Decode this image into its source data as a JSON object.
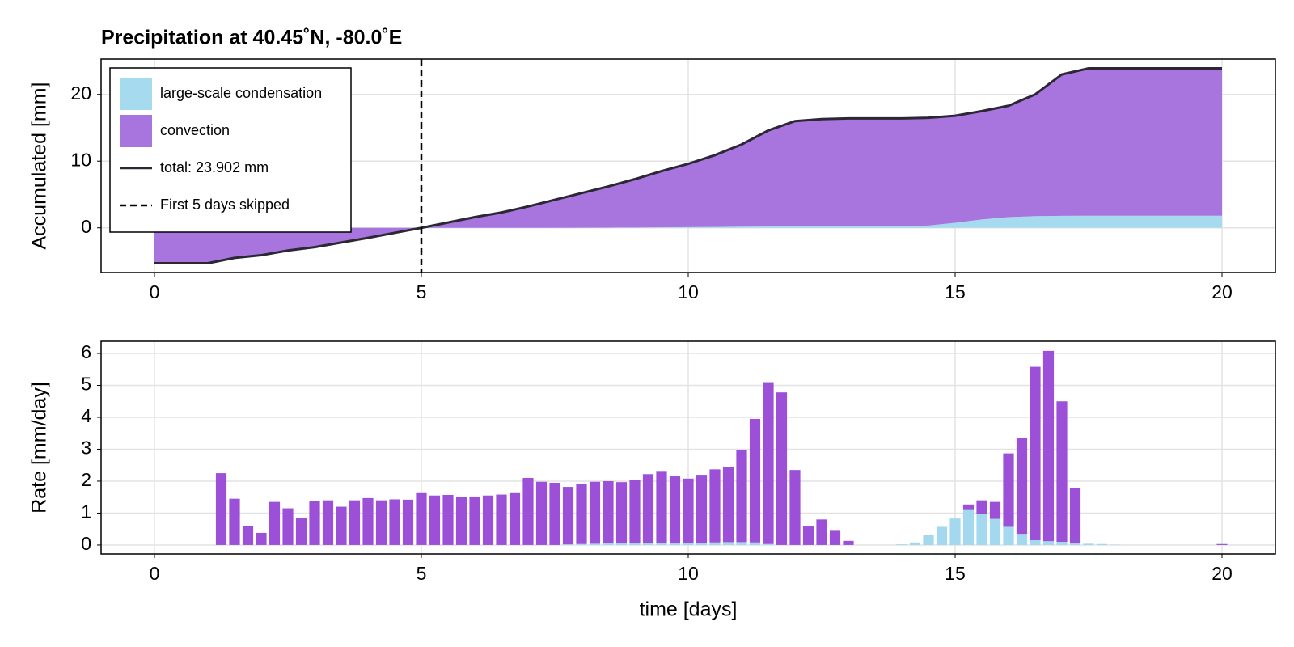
{
  "chart_data": [
    {
      "type": "area",
      "title": "Precipitation at 40.45˚N, -80.0˚E",
      "ylabel": "Accumulated [mm]",
      "x": [
        0,
        0.5,
        1,
        1.5,
        2,
        2.5,
        3,
        3.5,
        4,
        4.5,
        5,
        5.5,
        6,
        6.5,
        7,
        7.5,
        8,
        8.5,
        9,
        9.5,
        10,
        10.5,
        11,
        11.5,
        12,
        12.5,
        13,
        13.5,
        14,
        14.5,
        15,
        15.5,
        16,
        16.5,
        17,
        17.5,
        18,
        18.5,
        19,
        19.5,
        20
      ],
      "series": [
        {
          "name": "large-scale condensation",
          "color": "#a6daef",
          "values": [
            0,
            0,
            0,
            0,
            0,
            0,
            0,
            0,
            0,
            0,
            0,
            0,
            0,
            0,
            0,
            0,
            0.01,
            0.03,
            0.05,
            0.08,
            0.11,
            0.14,
            0.18,
            0.21,
            0.22,
            0.22,
            0.22,
            0.22,
            0.22,
            0.35,
            0.75,
            1.25,
            1.6,
            1.75,
            1.8,
            1.82,
            1.82,
            1.82,
            1.82,
            1.82,
            1.82
          ]
        },
        {
          "name": "convection",
          "color": "#a874dd",
          "values": [
            -5.3,
            -5.3,
            -5.3,
            -4.5,
            -4.1,
            -3.4,
            -2.9,
            -2.2,
            -1.5,
            -0.75,
            0,
            0.8,
            1.6,
            2.3,
            3.2,
            4.2,
            5.19,
            6.17,
            7.25,
            8.42,
            9.49,
            10.76,
            12.32,
            14.39,
            15.78,
            16.08,
            16.18,
            16.18,
            16.18,
            16.15,
            16.05,
            16.25,
            16.7,
            18.25,
            21.2,
            22.08,
            22.08,
            22.08,
            22.08,
            22.08,
            22.08
          ]
        },
        {
          "name": "total: 23.902 mm",
          "color": "#2b2833",
          "style": "line",
          "values": [
            -5.3,
            -5.3,
            -5.3,
            -4.5,
            -4.1,
            -3.4,
            -2.9,
            -2.2,
            -1.5,
            -0.75,
            0,
            0.8,
            1.6,
            2.3,
            3.2,
            4.2,
            5.2,
            6.2,
            7.3,
            8.5,
            9.6,
            10.9,
            12.5,
            14.6,
            16.0,
            16.3,
            16.4,
            16.4,
            16.4,
            16.5,
            16.8,
            17.5,
            18.3,
            20.0,
            23.0,
            23.9,
            23.9,
            23.9,
            23.9,
            23.9,
            23.9
          ]
        }
      ],
      "vline": {
        "x": 5,
        "name": "First 5 days skipped",
        "color": "#000000"
      },
      "xlim": [
        -1,
        21
      ],
      "ylim": [
        -6.7,
        25.3
      ],
      "xticks": [
        0,
        5,
        10,
        15,
        20
      ],
      "yticks": [
        0,
        10,
        20
      ],
      "grid": true,
      "legend": "top-left"
    },
    {
      "type": "bar",
      "ylabel": "Rate [mm/day]",
      "xlabel": "time [days]",
      "stacked": true,
      "x": [
        0.25,
        0.5,
        0.75,
        1,
        1.25,
        1.5,
        1.75,
        2,
        2.25,
        2.5,
        2.75,
        3,
        3.25,
        3.5,
        3.75,
        4,
        4.25,
        4.5,
        4.75,
        5,
        5.25,
        5.5,
        5.75,
        6,
        6.25,
        6.5,
        6.75,
        7,
        7.25,
        7.5,
        7.75,
        8,
        8.25,
        8.5,
        8.75,
        9,
        9.25,
        9.5,
        9.75,
        10,
        10.25,
        10.5,
        10.75,
        11,
        11.25,
        11.5,
        11.75,
        12,
        12.25,
        12.5,
        12.75,
        13,
        13.25,
        13.5,
        13.75,
        14,
        14.25,
        14.5,
        14.75,
        15,
        15.25,
        15.5,
        15.75,
        16,
        16.25,
        16.5,
        16.75,
        17,
        17.25,
        17.5,
        17.75,
        18,
        18.25,
        18.5,
        18.75,
        19,
        19.25,
        19.5,
        19.75,
        20
      ],
      "series": [
        {
          "color": "#a3d8ee",
          "values": [
            0,
            0,
            0,
            0,
            0,
            0,
            0,
            0,
            0,
            0,
            0,
            0,
            0,
            0,
            0,
            0,
            0,
            0,
            0,
            0,
            0,
            0,
            0,
            0,
            0,
            0,
            0,
            0,
            0,
            0,
            0.02,
            0.03,
            0.04,
            0.05,
            0.05,
            0.06,
            0.06,
            0.06,
            0.06,
            0.06,
            0.07,
            0.08,
            0.09,
            0.09,
            0.08,
            0.03,
            0,
            0,
            0,
            0,
            0,
            0,
            0,
            0,
            0,
            0.02,
            0.08,
            0.32,
            0.57,
            0.83,
            1.12,
            0.97,
            0.82,
            0.57,
            0.35,
            0.15,
            0.12,
            0.1,
            0.07,
            0.04,
            0.03,
            0.01,
            0,
            0,
            0,
            0,
            0,
            0,
            0,
            0
          ]
        },
        {
          "color": "#9b50d7",
          "values": [
            0,
            0,
            0,
            0,
            2.25,
            1.45,
            0.6,
            0.38,
            1.35,
            1.15,
            0.85,
            1.38,
            1.4,
            1.2,
            1.4,
            1.47,
            1.4,
            1.43,
            1.42,
            1.65,
            1.55,
            1.57,
            1.5,
            1.52,
            1.55,
            1.58,
            1.65,
            2.1,
            1.98,
            1.95,
            1.8,
            1.87,
            1.94,
            1.95,
            1.92,
            1.99,
            2.16,
            2.26,
            2.09,
            2.02,
            2.13,
            2.29,
            2.34,
            2.88,
            3.87,
            5.07,
            4.78,
            2.35,
            0.58,
            0.8,
            0.47,
            0.13,
            0,
            0,
            0,
            0,
            0,
            0,
            0,
            0,
            0.15,
            0.43,
            0.53,
            2.3,
            3.0,
            5.43,
            5.96,
            4.4,
            1.71,
            0,
            0,
            0,
            0,
            0,
            0,
            0,
            0,
            0,
            0,
            0.03
          ]
        }
      ],
      "xlim": [
        -1,
        21
      ],
      "ylim": [
        -0.28,
        6.38
      ],
      "xticks": [
        0,
        5,
        10,
        15,
        20
      ],
      "yticks": [
        0,
        1,
        2,
        3,
        4,
        5,
        6
      ],
      "grid": true
    }
  ]
}
